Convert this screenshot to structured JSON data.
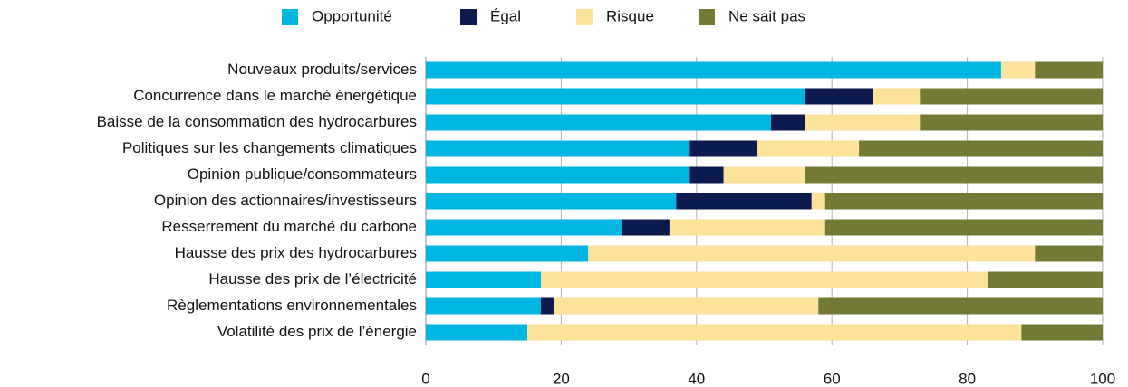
{
  "chart_data": {
    "type": "stacked-barh",
    "categories": [
      "Nouveaux produits/services",
      "Concurrence dans le marché énergétique",
      "Baisse de la consommation des hydrocarbures",
      "Politiques sur les changements climatiques",
      "Opinion publique/consommateurs",
      "Opinion des actionnaires/investisseurs",
      "Resserrement du marché du carbone",
      "Hausse des prix des hydrocarbures",
      "Hausse des prix de l’électricité",
      "Règlementations environnementales",
      "Volatilité des prix de l’énergie"
    ],
    "series": [
      {
        "name": "Opportunité",
        "color": "#00b5e2",
        "values": [
          85,
          56,
          51,
          39,
          39,
          37,
          29,
          24,
          17,
          17,
          15
        ]
      },
      {
        "name": "Égal",
        "color": "#0c1a4d",
        "values": [
          0,
          10,
          5,
          10,
          5,
          20,
          7,
          0,
          0,
          2,
          0
        ]
      },
      {
        "name": "Risque",
        "color": "#fde29a",
        "values": [
          5,
          7,
          17,
          15,
          12,
          2,
          23,
          66,
          66,
          39,
          73
        ]
      },
      {
        "name": "Ne sait pas",
        "color": "#737a36",
        "values": [
          10,
          27,
          27,
          36,
          44,
          41,
          41,
          10,
          17,
          42,
          12
        ]
      }
    ],
    "xlim": [
      0,
      100
    ],
    "xticks": [
      0,
      20,
      40,
      60,
      80,
      100
    ],
    "grid": true,
    "legend": "top"
  }
}
